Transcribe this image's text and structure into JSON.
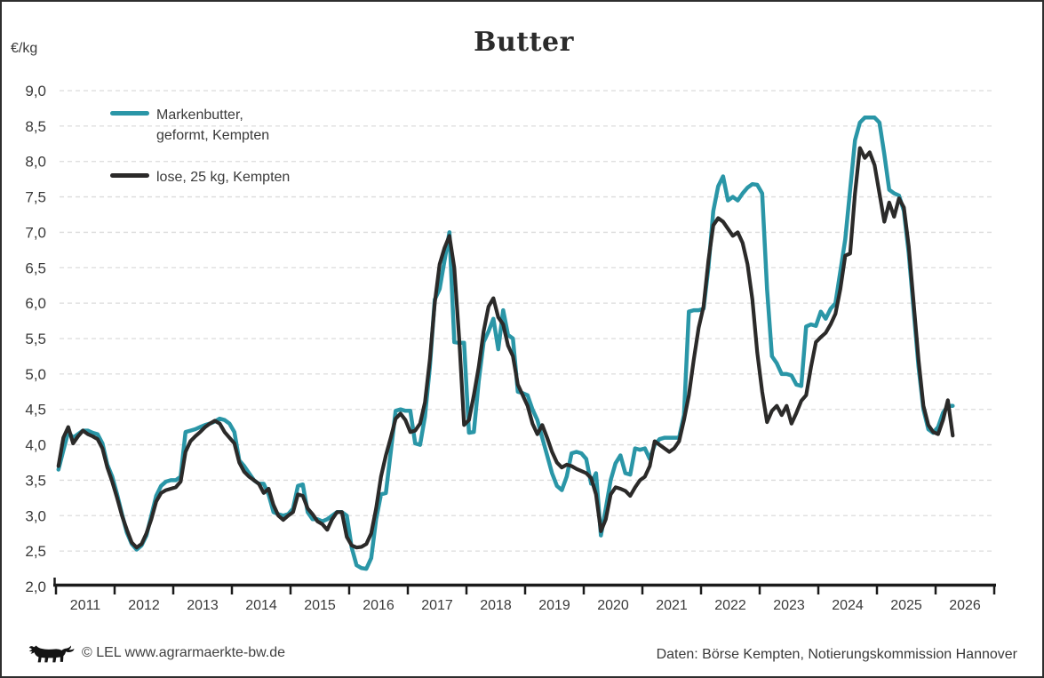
{
  "header": {
    "title": "Butter",
    "y_unit": "€/kg"
  },
  "legend": [
    {
      "label_line1": "Markenbutter,",
      "label_line2": "geformt, Kempten",
      "color": "#2A96A7"
    },
    {
      "label_line1": "lose, 25 kg, Kempten",
      "label_line2": "",
      "color": "#2B2A29"
    }
  ],
  "footer": {
    "left_credit": "© LEL www.agrarmaerkte-bw.de",
    "right_source": "Daten: Börse Kempten, Notierungskommission Hannover",
    "logo": "baden-wuerttemberg-lion"
  },
  "colors": {
    "series_markenbutter": "#2A96A7",
    "series_lose": "#2B2A29",
    "gridline": "#dcdcdc",
    "axis": "#1a1a1a",
    "tick_label": "#3a3a3a",
    "frame_border": "#2e2e2e"
  },
  "chart_data": {
    "type": "line",
    "title": "Butter",
    "ylabel": "€/kg",
    "xlabel": "",
    "ylim": [
      2.0,
      9.0
    ],
    "ytick_step": 0.5,
    "ytick_labels": [
      "2,0",
      "2,5",
      "3,0",
      "3,5",
      "4,0",
      "4,5",
      "5,0",
      "5,5",
      "6,0",
      "6,5",
      "7,0",
      "7,5",
      "8,0",
      "8,5",
      "9,0"
    ],
    "x_year_labels": [
      "2011",
      "2012",
      "2013",
      "2014",
      "2015",
      "2016",
      "2017",
      "2018",
      "2019",
      "2020",
      "2021",
      "2022",
      "2023",
      "2024",
      "2025",
      "2026"
    ],
    "x_axis_span_years": 16,
    "grid": "horizontal-dashed",
    "legend_position": "top-left-inside",
    "data_start_month": "2011-01",
    "data_resolution": "monthly",
    "series": [
      {
        "name": "Markenbutter, geformt, Kempten",
        "color": "#2A96A7",
        "monthly_values": [
          3.65,
          3.92,
          4.18,
          4.1,
          4.15,
          4.2,
          4.2,
          4.17,
          4.15,
          4.02,
          3.72,
          3.55,
          3.3,
          3.02,
          2.76,
          2.6,
          2.52,
          2.58,
          2.72,
          3.0,
          3.28,
          3.42,
          3.48,
          3.5,
          3.5,
          3.55,
          4.18,
          4.2,
          4.22,
          4.25,
          4.28,
          4.3,
          4.33,
          4.37,
          4.35,
          4.3,
          4.18,
          3.78,
          3.7,
          3.6,
          3.5,
          3.45,
          3.45,
          3.3,
          3.05,
          3.02,
          3.0,
          3.02,
          3.1,
          3.42,
          3.44,
          3.05,
          2.95,
          2.95,
          2.92,
          2.95,
          3.0,
          3.05,
          3.05,
          3.0,
          2.55,
          2.3,
          2.26,
          2.25,
          2.4,
          2.95,
          3.3,
          3.32,
          3.9,
          4.48,
          4.5,
          4.48,
          4.48,
          4.02,
          4.0,
          4.4,
          5.1,
          6.05,
          6.2,
          6.6,
          7.0,
          5.45,
          5.44,
          5.44,
          4.17,
          4.18,
          4.9,
          5.45,
          5.6,
          5.78,
          5.35,
          5.9,
          5.55,
          5.5,
          4.75,
          4.73,
          4.7,
          4.5,
          4.35,
          4.1,
          3.85,
          3.6,
          3.42,
          3.36,
          3.55,
          3.88,
          3.9,
          3.88,
          3.8,
          3.45,
          3.6,
          2.72,
          3.1,
          3.5,
          3.74,
          3.85,
          3.6,
          3.58,
          3.95,
          3.93,
          3.95,
          3.8,
          4.0,
          4.08,
          4.1,
          4.1,
          4.1,
          4.1,
          4.42,
          5.88,
          5.9,
          5.9,
          5.92,
          6.5,
          7.3,
          7.65,
          7.79,
          7.45,
          7.5,
          7.45,
          7.55,
          7.63,
          7.68,
          7.67,
          7.55,
          6.2,
          5.25,
          5.15,
          5.0,
          5.0,
          4.98,
          4.85,
          4.83,
          5.67,
          5.7,
          5.68,
          5.88,
          5.78,
          5.92,
          6.0,
          6.45,
          6.9,
          7.6,
          8.3,
          8.55,
          8.62,
          8.62,
          8.62,
          8.55,
          8.1,
          7.6,
          7.55,
          7.52,
          7.3,
          6.7,
          5.9,
          5.1,
          4.5,
          4.22,
          4.17,
          4.25,
          4.45,
          4.55,
          4.55
        ]
      },
      {
        "name": "lose, 25 kg, Kempten",
        "color": "#2B2A29",
        "monthly_values": [
          3.7,
          4.1,
          4.25,
          4.02,
          4.12,
          4.2,
          4.15,
          4.12,
          4.08,
          3.95,
          3.68,
          3.48,
          3.25,
          3.0,
          2.8,
          2.62,
          2.55,
          2.6,
          2.75,
          2.95,
          3.2,
          3.32,
          3.36,
          3.38,
          3.4,
          3.48,
          3.9,
          4.05,
          4.12,
          4.18,
          4.25,
          4.3,
          4.34,
          4.3,
          4.18,
          4.1,
          4.02,
          3.75,
          3.62,
          3.55,
          3.5,
          3.45,
          3.32,
          3.38,
          3.15,
          3.0,
          2.94,
          3.0,
          3.05,
          3.3,
          3.28,
          3.1,
          3.02,
          2.92,
          2.88,
          2.8,
          2.95,
          3.05,
          3.05,
          2.7,
          2.58,
          2.55,
          2.56,
          2.6,
          2.75,
          3.1,
          3.55,
          3.85,
          4.1,
          4.37,
          4.44,
          4.35,
          4.18,
          4.2,
          4.3,
          4.6,
          5.2,
          6.0,
          6.55,
          6.78,
          6.95,
          6.5,
          5.5,
          4.28,
          4.35,
          4.7,
          5.1,
          5.6,
          5.95,
          6.07,
          5.8,
          5.7,
          5.4,
          5.25,
          4.85,
          4.7,
          4.55,
          4.3,
          4.15,
          4.28,
          4.1,
          3.9,
          3.75,
          3.68,
          3.72,
          3.7,
          3.66,
          3.63,
          3.6,
          3.53,
          3.3,
          2.78,
          2.95,
          3.3,
          3.4,
          3.38,
          3.35,
          3.28,
          3.4,
          3.5,
          3.55,
          3.7,
          4.05,
          4.0,
          3.95,
          3.9,
          3.95,
          4.05,
          4.35,
          4.7,
          5.2,
          5.65,
          5.95,
          6.6,
          7.1,
          7.2,
          7.15,
          7.05,
          6.95,
          7.0,
          6.85,
          6.55,
          6.05,
          5.3,
          4.75,
          4.32,
          4.48,
          4.55,
          4.42,
          4.55,
          4.3,
          4.45,
          4.62,
          4.7,
          5.1,
          5.45,
          5.52,
          5.58,
          5.7,
          5.85,
          6.2,
          6.67,
          6.7,
          7.55,
          8.19,
          8.05,
          8.13,
          7.95,
          7.55,
          7.15,
          7.42,
          7.22,
          7.48,
          7.35,
          6.8,
          6.0,
          5.2,
          4.55,
          4.28,
          4.18,
          4.15,
          4.35,
          4.63,
          4.13
        ]
      }
    ]
  }
}
